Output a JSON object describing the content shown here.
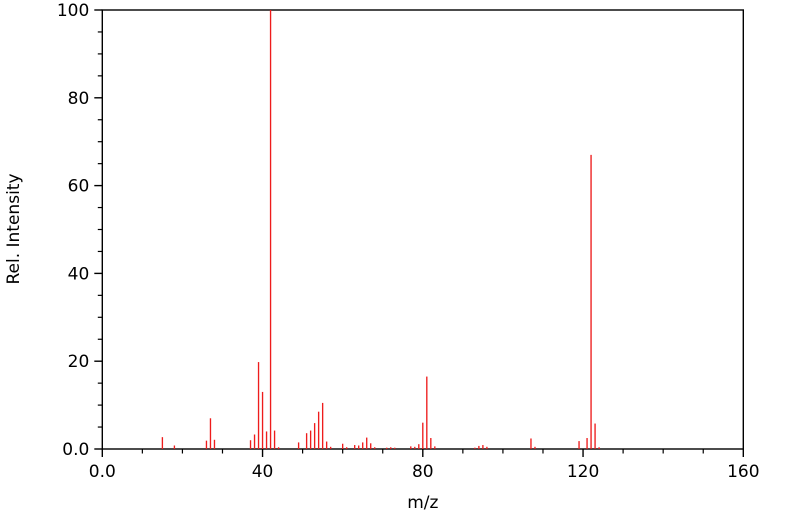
{
  "figure": {
    "background_color": "#ffffff",
    "axis_color": "#000000",
    "text_color": "#000000",
    "bar_color": "#ee1c1c"
  },
  "chart_data": {
    "type": "bar",
    "subtype": "mass-spectrum-impulse",
    "title": "",
    "xlabel": "m/z",
    "ylabel": "Rel. Intensity",
    "xlim": [
      0,
      160
    ],
    "ylim": [
      0,
      100
    ],
    "grid": false,
    "legend": false,
    "x_major_ticks": [
      0,
      40,
      80,
      120,
      160
    ],
    "x_tick_labels": [
      "0.0",
      "40",
      "80",
      "120",
      "160"
    ],
    "x_minor_step": 10,
    "y_major_ticks": [
      0,
      20,
      40,
      60,
      80,
      100
    ],
    "y_tick_labels": [
      "0.0",
      "20",
      "40",
      "60",
      "80",
      "100"
    ],
    "y_minor_step": 5,
    "series_name": "relative intensity vs m/z",
    "points": [
      [
        15,
        2.7
      ],
      [
        18,
        0.8
      ],
      [
        26,
        1.9
      ],
      [
        27,
        7.0
      ],
      [
        28,
        2.1
      ],
      [
        37,
        2.0
      ],
      [
        38,
        3.3
      ],
      [
        39,
        19.8
      ],
      [
        40,
        13.0
      ],
      [
        41,
        4.0
      ],
      [
        42,
        100.0
      ],
      [
        43,
        4.2
      ],
      [
        44,
        0.4
      ],
      [
        49,
        1.5
      ],
      [
        51,
        3.6
      ],
      [
        52,
        4.2
      ],
      [
        53,
        5.9
      ],
      [
        54,
        8.5
      ],
      [
        55,
        10.5
      ],
      [
        56,
        1.7
      ],
      [
        57,
        0.5
      ],
      [
        60,
        1.2
      ],
      [
        61,
        0.4
      ],
      [
        63,
        0.9
      ],
      [
        64,
        0.8
      ],
      [
        65,
        1.5
      ],
      [
        66,
        2.6
      ],
      [
        67,
        1.3
      ],
      [
        68,
        0.4
      ],
      [
        71,
        0.3
      ],
      [
        72,
        0.4
      ],
      [
        73,
        0.3
      ],
      [
        77,
        0.6
      ],
      [
        78,
        0.5
      ],
      [
        79,
        1.1
      ],
      [
        80,
        6.0
      ],
      [
        81,
        16.5
      ],
      [
        82,
        2.5
      ],
      [
        83,
        0.6
      ],
      [
        93,
        0.3
      ],
      [
        94,
        0.7
      ],
      [
        95,
        0.9
      ],
      [
        96,
        0.5
      ],
      [
        107,
        2.4
      ],
      [
        108,
        0.5
      ],
      [
        119,
        1.8
      ],
      [
        121,
        2.5
      ],
      [
        122,
        67.0
      ],
      [
        123,
        5.8
      ],
      [
        124,
        0.4
      ]
    ]
  }
}
